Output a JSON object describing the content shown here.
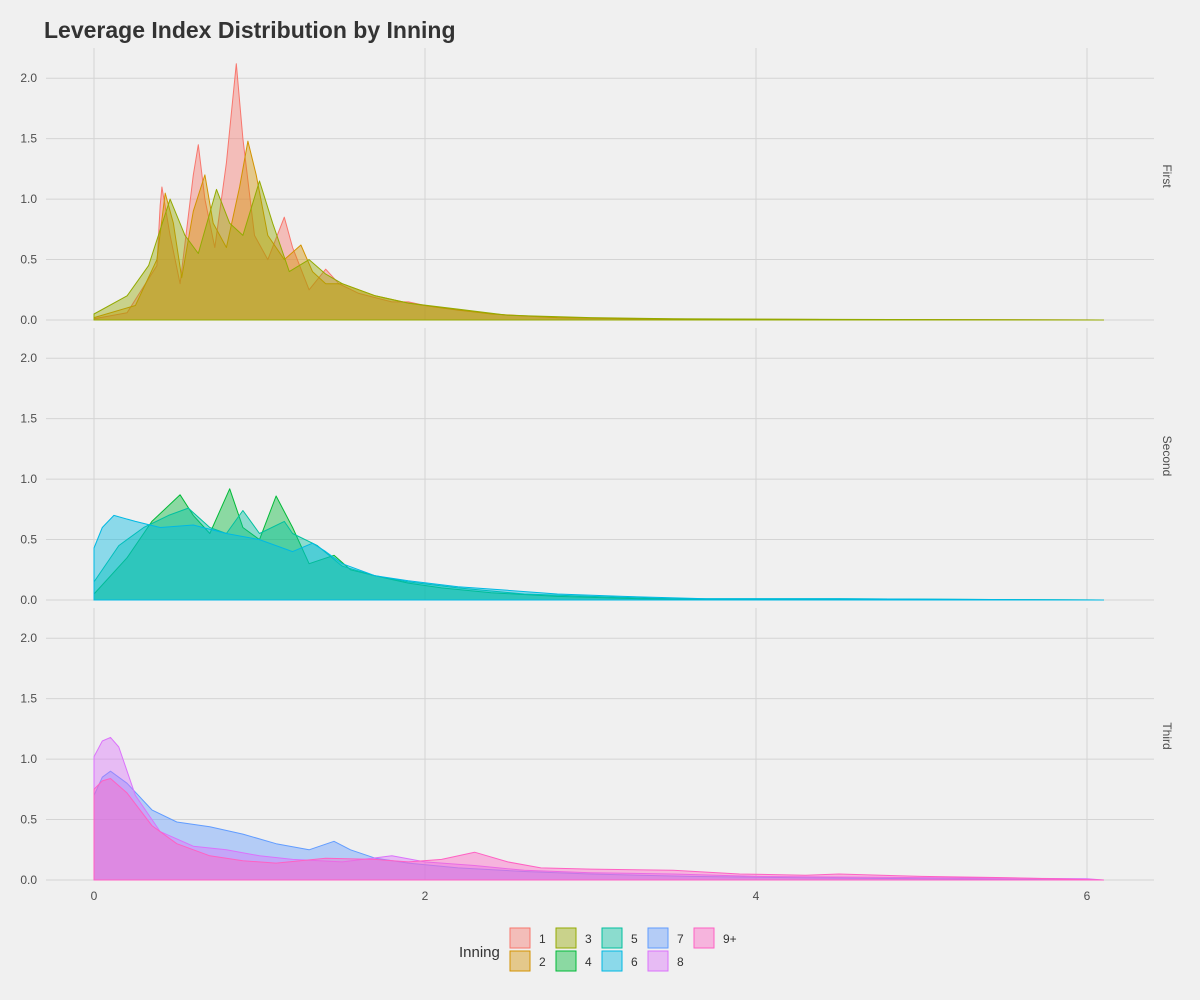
{
  "chart_data": {
    "type": "area",
    "subtype": "faceted density",
    "title": "Leverage Index Distribution by Inning",
    "xlabel": "",
    "ylabel": "",
    "xlim": [
      -0.15,
      6.25
    ],
    "ylim": [
      0,
      2.25
    ],
    "x_ticks": [
      0,
      2,
      4,
      6
    ],
    "y_ticks": [
      0.0,
      0.5,
      1.0,
      1.5,
      2.0
    ],
    "grid": true,
    "legend": {
      "title": "Inning",
      "position": "bottom",
      "entries": [
        {
          "label": "1",
          "color": "#F8766D"
        },
        {
          "label": "2",
          "color": "#D39200"
        },
        {
          "label": "3",
          "color": "#93AA00"
        },
        {
          "label": "4",
          "color": "#00BA38"
        },
        {
          "label": "5",
          "color": "#00C19F"
        },
        {
          "label": "6",
          "color": "#00B9E3"
        },
        {
          "label": "7",
          "color": "#619CFF"
        },
        {
          "label": "8",
          "color": "#DB72FB"
        },
        {
          "label": "9+",
          "color": "#FF61C3"
        }
      ]
    },
    "facets": [
      {
        "label": "First",
        "series": [
          {
            "name": "1",
            "color": "#F8766D",
            "points": [
              [
                0,
                0.01
              ],
              [
                0.2,
                0.06
              ],
              [
                0.38,
                0.45
              ],
              [
                0.4,
                0.95
              ],
              [
                0.41,
                1.1
              ],
              [
                0.46,
                0.7
              ],
              [
                0.52,
                0.3
              ],
              [
                0.6,
                1.2
              ],
              [
                0.63,
                1.45
              ],
              [
                0.67,
                1.0
              ],
              [
                0.73,
                0.6
              ],
              [
                0.8,
                1.3
              ],
              [
                0.86,
                2.12
              ],
              [
                0.9,
                1.5
              ],
              [
                0.97,
                0.7
              ],
              [
                1.05,
                0.5
              ],
              [
                1.15,
                0.85
              ],
              [
                1.2,
                0.6
              ],
              [
                1.3,
                0.25
              ],
              [
                1.4,
                0.42
              ],
              [
                1.48,
                0.3
              ],
              [
                1.6,
                0.22
              ],
              [
                1.8,
                0.15
              ],
              [
                1.9,
                0.15
              ],
              [
                2.0,
                0.12
              ],
              [
                2.2,
                0.08
              ],
              [
                2.5,
                0.04
              ],
              [
                2.8,
                0.02
              ],
              [
                3.2,
                0.01
              ],
              [
                4.0,
                0.005
              ],
              [
                6.1,
                0
              ]
            ]
          },
          {
            "name": "2",
            "color": "#D39200",
            "points": [
              [
                0,
                0.02
              ],
              [
                0.25,
                0.12
              ],
              [
                0.38,
                0.5
              ],
              [
                0.43,
                1.05
              ],
              [
                0.48,
                0.8
              ],
              [
                0.53,
                0.35
              ],
              [
                0.6,
                0.9
              ],
              [
                0.67,
                1.2
              ],
              [
                0.72,
                0.8
              ],
              [
                0.8,
                0.6
              ],
              [
                0.88,
                1.1
              ],
              [
                0.93,
                1.48
              ],
              [
                0.98,
                1.2
              ],
              [
                1.05,
                0.7
              ],
              [
                1.15,
                0.5
              ],
              [
                1.25,
                0.62
              ],
              [
                1.32,
                0.4
              ],
              [
                1.4,
                0.3
              ],
              [
                1.5,
                0.3
              ],
              [
                1.7,
                0.2
              ],
              [
                1.9,
                0.14
              ],
              [
                2.1,
                0.1
              ],
              [
                2.4,
                0.05
              ],
              [
                2.8,
                0.02
              ],
              [
                3.3,
                0.01
              ],
              [
                4.0,
                0.005
              ],
              [
                6.1,
                0
              ]
            ]
          },
          {
            "name": "3",
            "color": "#93AA00",
            "points": [
              [
                0,
                0.05
              ],
              [
                0.2,
                0.2
              ],
              [
                0.33,
                0.45
              ],
              [
                0.46,
                1.0
              ],
              [
                0.55,
                0.7
              ],
              [
                0.63,
                0.55
              ],
              [
                0.74,
                1.08
              ],
              [
                0.82,
                0.8
              ],
              [
                0.9,
                0.7
              ],
              [
                1.0,
                1.15
              ],
              [
                1.08,
                0.8
              ],
              [
                1.18,
                0.4
              ],
              [
                1.3,
                0.5
              ],
              [
                1.4,
                0.38
              ],
              [
                1.5,
                0.3
              ],
              [
                1.7,
                0.2
              ],
              [
                1.9,
                0.14
              ],
              [
                2.2,
                0.09
              ],
              [
                2.5,
                0.04
              ],
              [
                3.0,
                0.02
              ],
              [
                3.5,
                0.01
              ],
              [
                4.5,
                0.005
              ],
              [
                6.1,
                0
              ]
            ]
          }
        ]
      },
      {
        "label": "Second",
        "series": [
          {
            "name": "4",
            "color": "#00BA38",
            "points": [
              [
                0,
                0.05
              ],
              [
                0.2,
                0.35
              ],
              [
                0.35,
                0.65
              ],
              [
                0.52,
                0.87
              ],
              [
                0.6,
                0.7
              ],
              [
                0.7,
                0.55
              ],
              [
                0.82,
                0.92
              ],
              [
                0.9,
                0.6
              ],
              [
                1.0,
                0.5
              ],
              [
                1.1,
                0.86
              ],
              [
                1.2,
                0.6
              ],
              [
                1.3,
                0.3
              ],
              [
                1.45,
                0.37
              ],
              [
                1.55,
                0.25
              ],
              [
                1.7,
                0.2
              ],
              [
                1.9,
                0.14
              ],
              [
                2.1,
                0.1
              ],
              [
                2.4,
                0.06
              ],
              [
                2.8,
                0.03
              ],
              [
                3.3,
                0.01
              ],
              [
                4.0,
                0.005
              ],
              [
                6.1,
                0
              ]
            ]
          },
          {
            "name": "5",
            "color": "#00C19F",
            "points": [
              [
                0,
                0.15
              ],
              [
                0.15,
                0.45
              ],
              [
                0.3,
                0.6
              ],
              [
                0.45,
                0.7
              ],
              [
                0.57,
                0.76
              ],
              [
                0.7,
                0.6
              ],
              [
                0.8,
                0.55
              ],
              [
                0.9,
                0.74
              ],
              [
                1.0,
                0.55
              ],
              [
                1.15,
                0.65
              ],
              [
                1.2,
                0.55
              ],
              [
                1.35,
                0.45
              ],
              [
                1.5,
                0.28
              ],
              [
                1.7,
                0.2
              ],
              [
                1.9,
                0.15
              ],
              [
                2.2,
                0.1
              ],
              [
                2.6,
                0.05
              ],
              [
                3.0,
                0.03
              ],
              [
                3.5,
                0.01
              ],
              [
                4.5,
                0.01
              ],
              [
                6.1,
                0
              ]
            ]
          },
          {
            "name": "6",
            "color": "#00B9E3",
            "points": [
              [
                0,
                0.43
              ],
              [
                0.05,
                0.6
              ],
              [
                0.12,
                0.7
              ],
              [
                0.25,
                0.65
              ],
              [
                0.4,
                0.6
              ],
              [
                0.6,
                0.62
              ],
              [
                0.8,
                0.55
              ],
              [
                1.0,
                0.5
              ],
              [
                1.2,
                0.4
              ],
              [
                1.32,
                0.47
              ],
              [
                1.4,
                0.4
              ],
              [
                1.5,
                0.3
              ],
              [
                1.7,
                0.2
              ],
              [
                1.9,
                0.16
              ],
              [
                2.2,
                0.11
              ],
              [
                2.5,
                0.08
              ],
              [
                2.8,
                0.05
              ],
              [
                3.2,
                0.03
              ],
              [
                3.7,
                0.01
              ],
              [
                4.5,
                0.01
              ],
              [
                6.1,
                0
              ]
            ]
          }
        ]
      },
      {
        "label": "Third",
        "series": [
          {
            "name": "7",
            "color": "#619CFF",
            "points": [
              [
                0,
                0.7
              ],
              [
                0.05,
                0.85
              ],
              [
                0.1,
                0.9
              ],
              [
                0.2,
                0.8
              ],
              [
                0.35,
                0.58
              ],
              [
                0.5,
                0.48
              ],
              [
                0.7,
                0.44
              ],
              [
                0.9,
                0.38
              ],
              [
                1.1,
                0.3
              ],
              [
                1.3,
                0.25
              ],
              [
                1.45,
                0.32
              ],
              [
                1.55,
                0.25
              ],
              [
                1.7,
                0.18
              ],
              [
                1.9,
                0.14
              ],
              [
                2.2,
                0.1
              ],
              [
                2.6,
                0.07
              ],
              [
                3.0,
                0.05
              ],
              [
                3.6,
                0.03
              ],
              [
                4.2,
                0.02
              ],
              [
                5.0,
                0.01
              ],
              [
                6.1,
                0
              ]
            ]
          },
          {
            "name": "8",
            "color": "#DB72FB",
            "points": [
              [
                0,
                1.02
              ],
              [
                0.05,
                1.15
              ],
              [
                0.1,
                1.18
              ],
              [
                0.15,
                1.1
              ],
              [
                0.25,
                0.7
              ],
              [
                0.4,
                0.4
              ],
              [
                0.6,
                0.28
              ],
              [
                0.8,
                0.25
              ],
              [
                1.0,
                0.2
              ],
              [
                1.2,
                0.17
              ],
              [
                1.5,
                0.15
              ],
              [
                1.8,
                0.2
              ],
              [
                2.0,
                0.15
              ],
              [
                2.3,
                0.12
              ],
              [
                2.6,
                0.08
              ],
              [
                3.0,
                0.06
              ],
              [
                3.5,
                0.05
              ],
              [
                4.0,
                0.03
              ],
              [
                5.0,
                0.02
              ],
              [
                6.0,
                0.01
              ],
              [
                6.1,
                0
              ]
            ]
          },
          {
            "name": "9+",
            "color": "#FF61C3",
            "points": [
              [
                0,
                0.75
              ],
              [
                0.05,
                0.82
              ],
              [
                0.1,
                0.84
              ],
              [
                0.2,
                0.72
              ],
              [
                0.35,
                0.45
              ],
              [
                0.5,
                0.3
              ],
              [
                0.7,
                0.2
              ],
              [
                0.9,
                0.16
              ],
              [
                1.1,
                0.14
              ],
              [
                1.4,
                0.18
              ],
              [
                1.7,
                0.17
              ],
              [
                1.9,
                0.15
              ],
              [
                2.1,
                0.17
              ],
              [
                2.3,
                0.23
              ],
              [
                2.5,
                0.15
              ],
              [
                2.7,
                0.1
              ],
              [
                3.0,
                0.09
              ],
              [
                3.5,
                0.08
              ],
              [
                3.9,
                0.05
              ],
              [
                4.3,
                0.04
              ],
              [
                4.5,
                0.05
              ],
              [
                5.0,
                0.03
              ],
              [
                5.5,
                0.02
              ],
              [
                6.1,
                0
              ]
            ]
          }
        ]
      }
    ]
  }
}
